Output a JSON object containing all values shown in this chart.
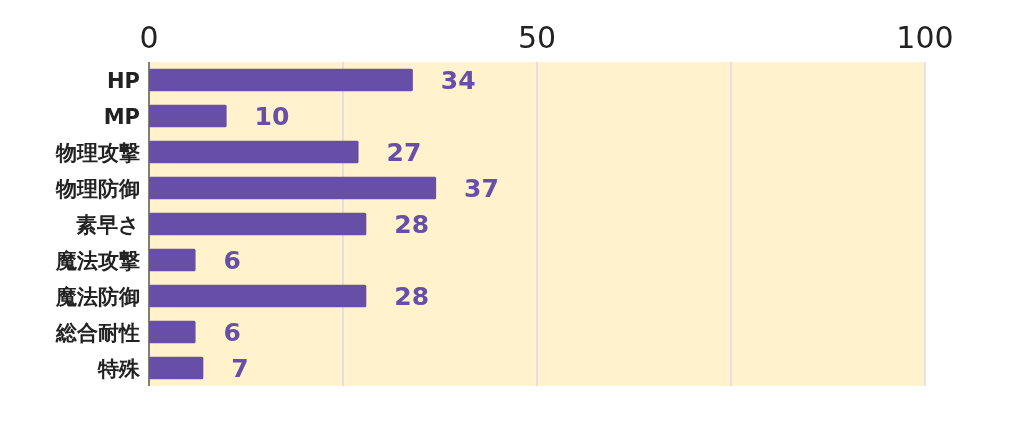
{
  "chart_data": {
    "type": "bar",
    "orientation": "horizontal",
    "categories": [
      "HP",
      "MP",
      "物理攻撃",
      "物理防御",
      "素早さ",
      "魔法攻撃",
      "魔法防御",
      "総合耐性",
      "特殊"
    ],
    "values": [
      34,
      10,
      27,
      37,
      28,
      6,
      28,
      6,
      7
    ],
    "color": "#674ea7",
    "xlim": [
      0,
      100
    ],
    "xticks": [
      0,
      {
        "value": 25,
        "label": null
      },
      50,
      {
        "value": 75,
        "label": null
      },
      100
    ],
    "grid": "x",
    "data_labels": true
  }
}
